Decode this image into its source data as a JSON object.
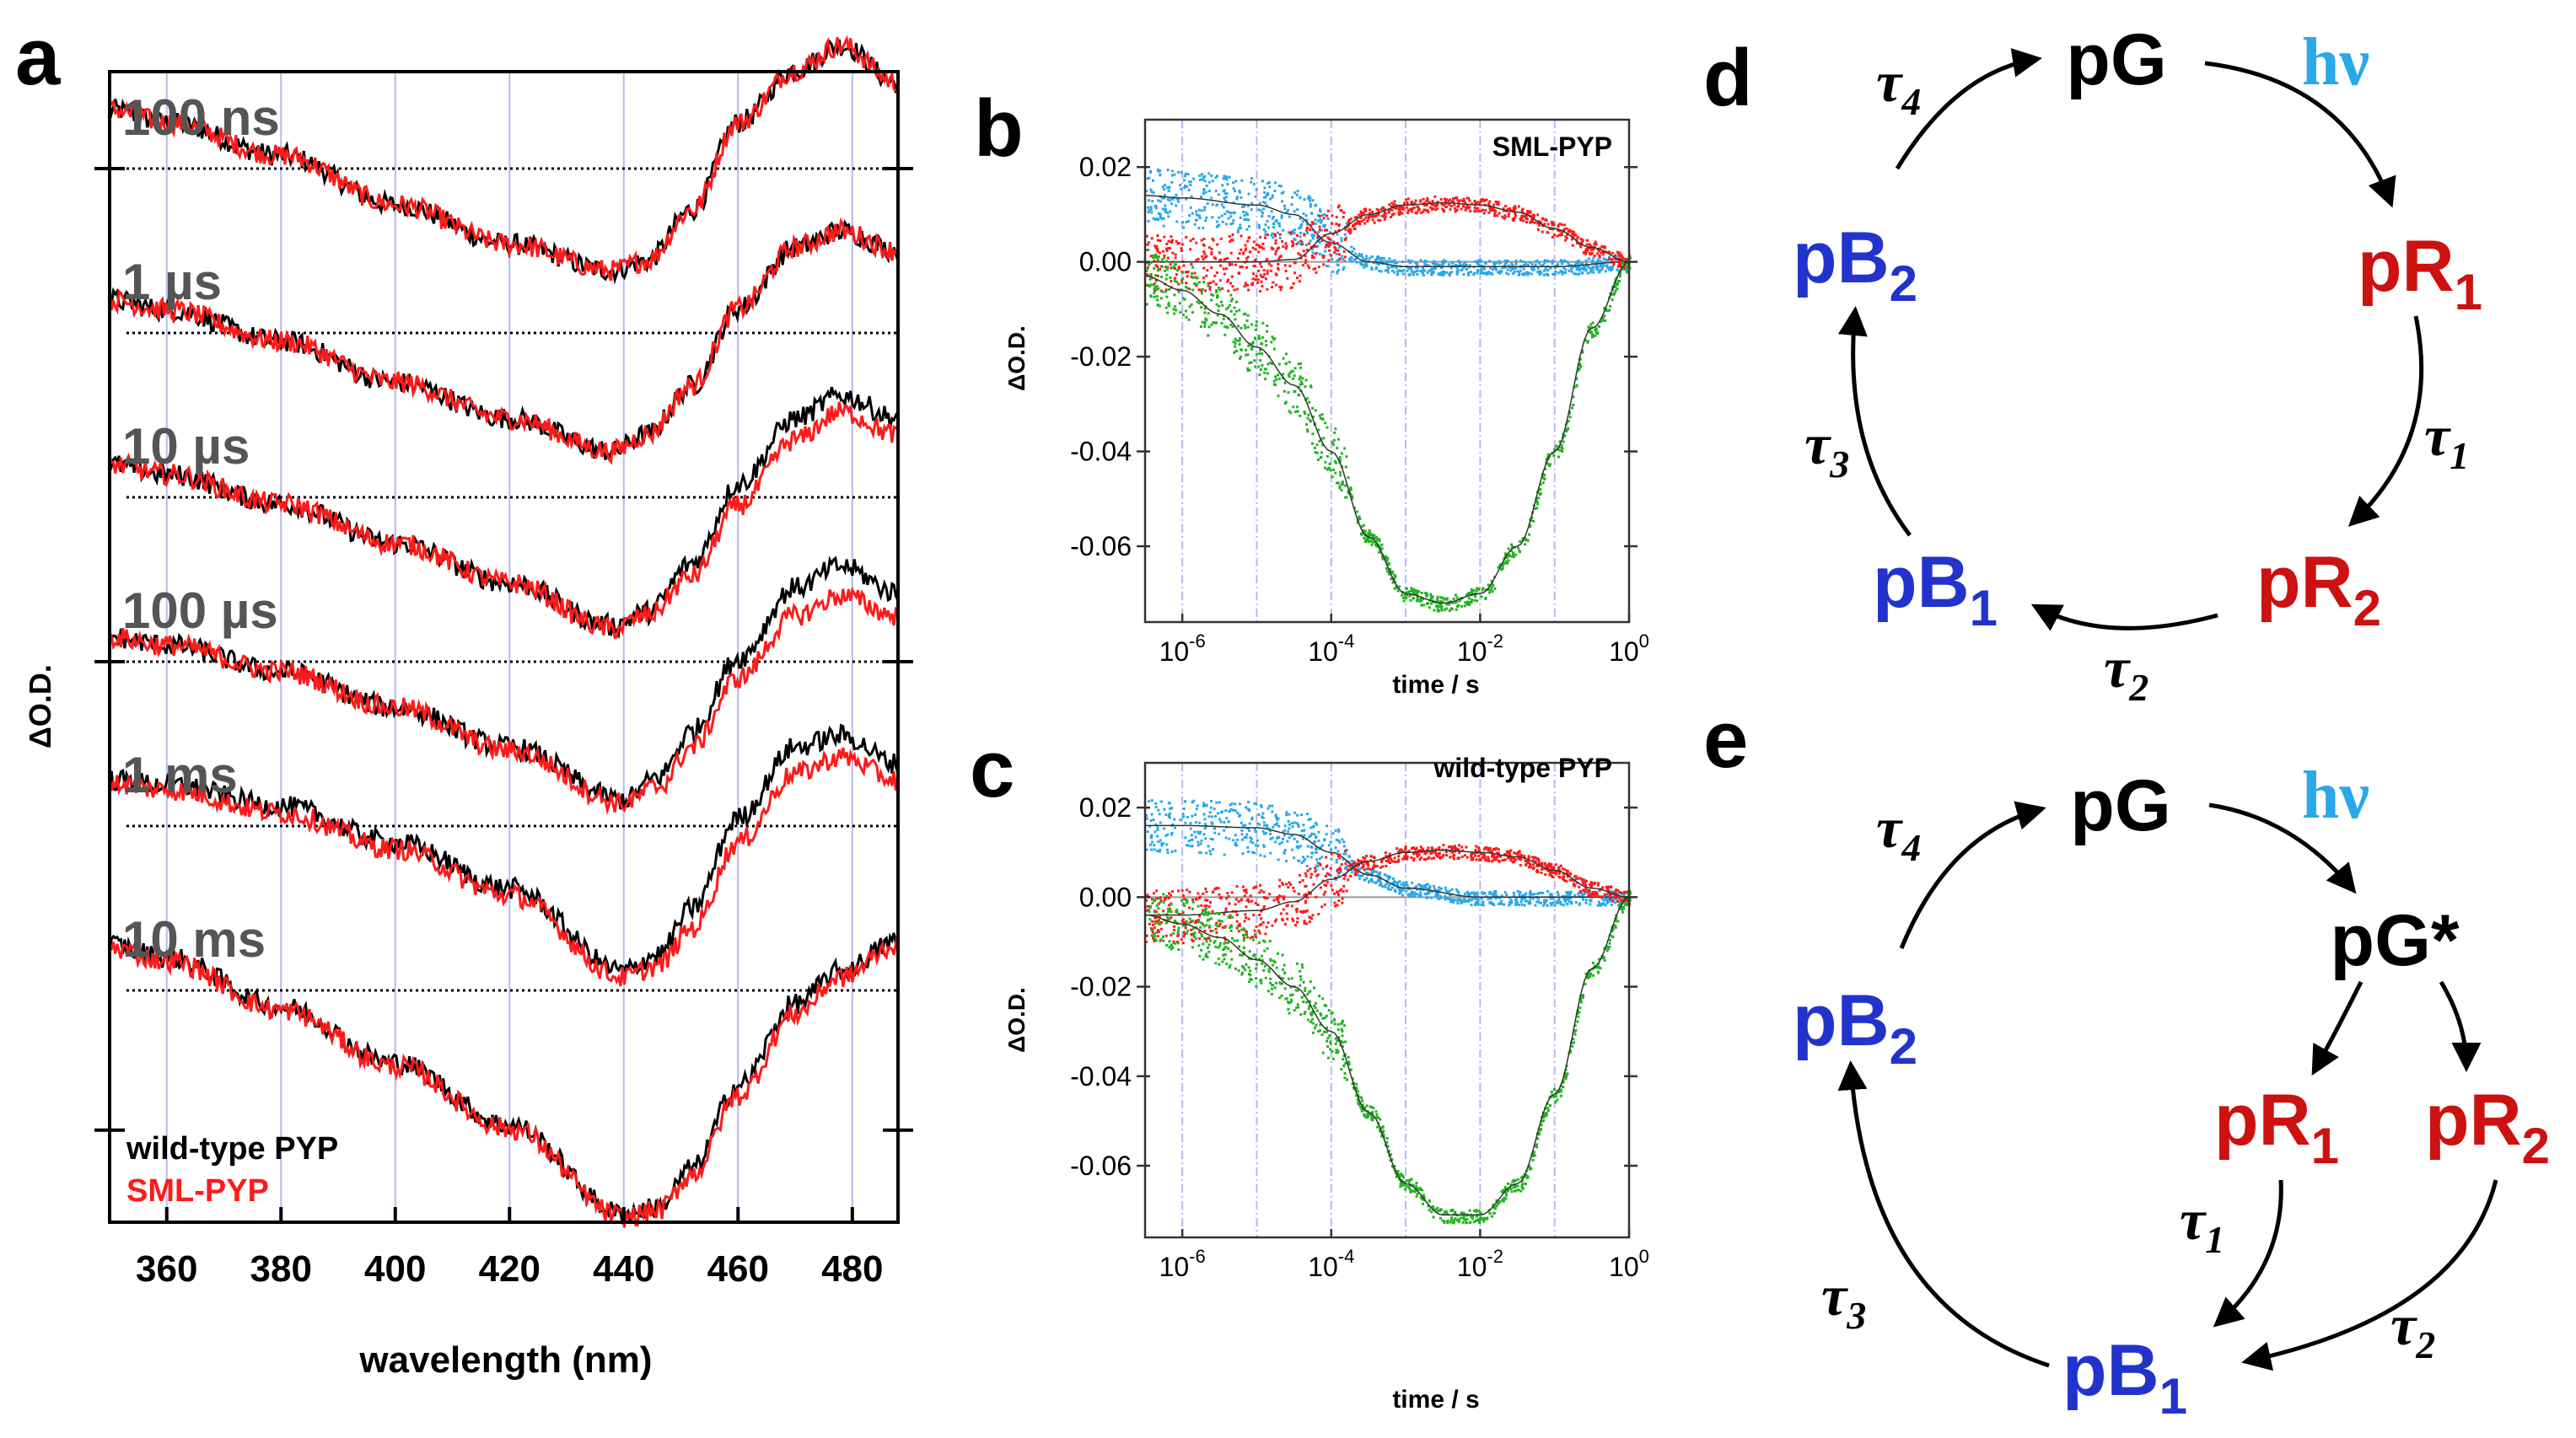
{
  "colors": {
    "black": "#000000",
    "red": "#ff1a1a",
    "blue": "#2233cc",
    "cyan": "#2aa8e8",
    "green": "#22b322",
    "darkred": "#cc1111",
    "gray": "#555555",
    "grid": "#b8b8f0"
  },
  "panels": {
    "a": "a",
    "b": "b",
    "c": "c",
    "d": "d",
    "e": "e"
  },
  "chart_data": [
    {
      "id": "a",
      "type": "line",
      "xlabel": "wavelength (nm)",
      "ylabel": "ΔO.D.",
      "xlim": [
        350,
        488
      ],
      "xticks": [
        "360",
        "380",
        "400",
        "420",
        "440",
        "460",
        "480"
      ],
      "xtick_values": [
        360,
        380,
        400,
        420,
        440,
        460,
        480
      ],
      "legend": [
        "wild-type PYP",
        "SML-PYP"
      ],
      "traces": [
        {
          "label": "100 ns",
          "baseline": 0,
          "wt": [
            [
              350,
              0.36
            ],
            [
              360,
              0.28
            ],
            [
              380,
              0.08
            ],
            [
              400,
              -0.22
            ],
            [
              420,
              -0.46
            ],
            [
              438,
              -0.62
            ],
            [
              444,
              -0.56
            ],
            [
              452,
              -0.25
            ],
            [
              460,
              0.28
            ],
            [
              470,
              0.6
            ],
            [
              478,
              0.75
            ],
            [
              488,
              0.52
            ]
          ],
          "sml": [
            [
              350,
              0.36
            ],
            [
              360,
              0.28
            ],
            [
              380,
              0.08
            ],
            [
              400,
              -0.22
            ],
            [
              420,
              -0.46
            ],
            [
              438,
              -0.62
            ],
            [
              444,
              -0.56
            ],
            [
              452,
              -0.25
            ],
            [
              460,
              0.28
            ],
            [
              470,
              0.6
            ],
            [
              478,
              0.75
            ],
            [
              488,
              0.52
            ]
          ]
        },
        {
          "label": "1 µs",
          "baseline": -1,
          "wt": [
            [
              350,
              -0.8
            ],
            [
              360,
              -0.86
            ],
            [
              380,
              -1.05
            ],
            [
              400,
              -1.3
            ],
            [
              420,
              -1.52
            ],
            [
              438,
              -1.72
            ],
            [
              444,
              -1.62
            ],
            [
              452,
              -1.32
            ],
            [
              460,
              -0.85
            ],
            [
              470,
              -0.48
            ],
            [
              478,
              -0.38
            ],
            [
              488,
              -0.5
            ]
          ],
          "sml": [
            [
              350,
              -0.8
            ],
            [
              360,
              -0.86
            ],
            [
              380,
              -1.05
            ],
            [
              400,
              -1.3
            ],
            [
              420,
              -1.52
            ],
            [
              438,
              -1.72
            ],
            [
              444,
              -1.62
            ],
            [
              452,
              -1.32
            ],
            [
              460,
              -0.85
            ],
            [
              470,
              -0.48
            ],
            [
              478,
              -0.38
            ],
            [
              488,
              -0.5
            ]
          ]
        },
        {
          "label": "10 µs",
          "baseline": -2,
          "wt": [
            [
              350,
              -1.8
            ],
            [
              360,
              -1.86
            ],
            [
              380,
              -2.04
            ],
            [
              400,
              -2.28
            ],
            [
              420,
              -2.52
            ],
            [
              438,
              -2.78
            ],
            [
              444,
              -2.7
            ],
            [
              452,
              -2.4
            ],
            [
              460,
              -1.92
            ],
            [
              470,
              -1.52
            ],
            [
              478,
              -1.38
            ],
            [
              488,
              -1.52
            ]
          ],
          "sml": [
            [
              350,
              -1.8
            ],
            [
              360,
              -1.86
            ],
            [
              380,
              -2.04
            ],
            [
              400,
              -2.28
            ],
            [
              420,
              -2.52
            ],
            [
              438,
              -2.8
            ],
            [
              444,
              -2.72
            ],
            [
              452,
              -2.48
            ],
            [
              460,
              -2.05
            ],
            [
              470,
              -1.65
            ],
            [
              478,
              -1.48
            ],
            [
              488,
              -1.62
            ]
          ]
        },
        {
          "label": "100 µs",
          "baseline": -3,
          "wt": [
            [
              350,
              -2.85
            ],
            [
              360,
              -2.9
            ],
            [
              380,
              -3.06
            ],
            [
              400,
              -3.28
            ],
            [
              420,
              -3.52
            ],
            [
              440,
              -3.84
            ],
            [
              446,
              -3.7
            ],
            [
              452,
              -3.42
            ],
            [
              460,
              -2.98
            ],
            [
              470,
              -2.55
            ],
            [
              478,
              -2.42
            ],
            [
              488,
              -2.58
            ]
          ],
          "sml": [
            [
              350,
              -2.85
            ],
            [
              360,
              -2.9
            ],
            [
              380,
              -3.06
            ],
            [
              400,
              -3.28
            ],
            [
              420,
              -3.54
            ],
            [
              440,
              -3.86
            ],
            [
              446,
              -3.76
            ],
            [
              452,
              -3.52
            ],
            [
              460,
              -3.1
            ],
            [
              470,
              -2.72
            ],
            [
              478,
              -2.6
            ],
            [
              488,
              -2.72
            ]
          ]
        },
        {
          "label": "1 ms",
          "baseline": -4,
          "wt": [
            [
              350,
              -3.72
            ],
            [
              360,
              -3.75
            ],
            [
              380,
              -3.88
            ],
            [
              400,
              -4.1
            ],
            [
              420,
              -4.38
            ],
            [
              440,
              -4.88
            ],
            [
              446,
              -4.78
            ],
            [
              452,
              -4.5
            ],
            [
              460,
              -3.95
            ],
            [
              470,
              -3.52
            ],
            [
              478,
              -3.45
            ],
            [
              488,
              -3.62
            ]
          ],
          "sml": [
            [
              350,
              -3.74
            ],
            [
              360,
              -3.78
            ],
            [
              380,
              -3.92
            ],
            [
              400,
              -4.14
            ],
            [
              420,
              -4.42
            ],
            [
              440,
              -4.92
            ],
            [
              446,
              -4.85
            ],
            [
              452,
              -4.62
            ],
            [
              460,
              -4.1
            ],
            [
              470,
              -3.68
            ],
            [
              478,
              -3.58
            ],
            [
              488,
              -3.72
            ]
          ]
        },
        {
          "label": "10 ms",
          "baseline": -5,
          "wt": [
            [
              350,
              -4.72
            ],
            [
              360,
              -4.8
            ],
            [
              380,
              -5.1
            ],
            [
              400,
              -5.44
            ],
            [
              420,
              -5.82
            ],
            [
              440,
              -6.36
            ],
            [
              446,
              -6.32
            ],
            [
              452,
              -6.08
            ],
            [
              460,
              -5.58
            ],
            [
              470,
              -5.08
            ],
            [
              478,
              -4.88
            ],
            [
              488,
              -4.7
            ]
          ],
          "sml": [
            [
              350,
              -4.74
            ],
            [
              360,
              -4.82
            ],
            [
              380,
              -5.12
            ],
            [
              400,
              -5.46
            ],
            [
              420,
              -5.84
            ],
            [
              440,
              -6.38
            ],
            [
              446,
              -6.34
            ],
            [
              452,
              -6.12
            ],
            [
              460,
              -5.64
            ],
            [
              470,
              -5.14
            ],
            [
              478,
              -4.92
            ],
            [
              488,
              -4.72
            ]
          ]
        }
      ]
    },
    {
      "id": "b",
      "type": "scatter",
      "title": "SML-PYP",
      "xlabel": "time / s",
      "ylabel": "ΔO.D.",
      "xscale": "log",
      "xlim": [
        -6.5,
        0
      ],
      "ylim": [
        -0.076,
        0.03
      ],
      "yticks": [
        "0.02",
        "0.00",
        "-0.02",
        "-0.04",
        "-0.06"
      ],
      "ytick_values": [
        0.02,
        0,
        -0.02,
        -0.04,
        -0.06
      ],
      "xticks_base": [
        "10",
        "10",
        "10",
        "10"
      ],
      "xticks_exp": [
        "-6",
        "-4",
        "-2",
        "0"
      ],
      "xtick_values": [
        -6,
        -4,
        -2,
        0
      ],
      "series": [
        {
          "name": "blue",
          "color": "#2aa8e8",
          "x": [
            -6.5,
            -6,
            -5,
            -4.5,
            -4,
            -3.5,
            -3,
            -2,
            -1,
            0
          ],
          "y": [
            0.014,
            0.0135,
            0.012,
            0.01,
            0.004,
            0,
            -0.001,
            -0.001,
            -0.001,
            0
          ]
        },
        {
          "name": "red",
          "color": "#ff1a1a",
          "x": [
            -6.5,
            -6,
            -5,
            -4.5,
            -4,
            -3.5,
            -3,
            -2.5,
            -2,
            -1.5,
            -1,
            -0.5,
            0
          ],
          "y": [
            0,
            0,
            0,
            0.0005,
            0.006,
            0.01,
            0.012,
            0.0125,
            0.012,
            0.0105,
            0.007,
            0.003,
            0
          ]
        },
        {
          "name": "green",
          "color": "#22b322",
          "x": [
            -6.5,
            -6,
            -5.5,
            -5,
            -4.5,
            -4,
            -3.5,
            -3,
            -2.5,
            -2,
            -1.5,
            -1,
            -0.5,
            0
          ],
          "y": [
            -0.003,
            -0.006,
            -0.011,
            -0.018,
            -0.026,
            -0.04,
            -0.058,
            -0.07,
            -0.072,
            -0.07,
            -0.06,
            -0.04,
            -0.014,
            0
          ]
        }
      ]
    },
    {
      "id": "c",
      "type": "scatter",
      "title": "wild-type PYP",
      "xlabel": "time / s",
      "ylabel": "ΔO.D.",
      "xscale": "log",
      "xlim": [
        -6.5,
        0
      ],
      "ylim": [
        -0.076,
        0.03
      ],
      "yticks": [
        "0.02",
        "0.00",
        "-0.02",
        "-0.04",
        "-0.06"
      ],
      "ytick_values": [
        0.02,
        0,
        -0.02,
        -0.04,
        -0.06
      ],
      "xticks_base": [
        "10",
        "10",
        "10",
        "10"
      ],
      "xticks_exp": [
        "-6",
        "-4",
        "-2",
        "0"
      ],
      "xtick_values": [
        -6,
        -4,
        -2,
        0
      ],
      "series": [
        {
          "name": "blue",
          "color": "#2aa8e8",
          "x": [
            -6.5,
            -6,
            -5,
            -4.5,
            -4,
            -3.5,
            -3,
            -2,
            -1,
            0
          ],
          "y": [
            0.016,
            0.016,
            0.0155,
            0.014,
            0.01,
            0.005,
            0.002,
            0,
            0,
            0
          ]
        },
        {
          "name": "red",
          "color": "#ff1a1a",
          "x": [
            -6.5,
            -6,
            -5,
            -4.5,
            -4,
            -3.5,
            -3,
            -2.5,
            -2,
            -1.5,
            -1,
            -0.5,
            0
          ],
          "y": [
            -0.004,
            -0.004,
            -0.003,
            -0.001,
            0.004,
            0.008,
            0.01,
            0.0105,
            0.01,
            0.009,
            0.006,
            0.002,
            0
          ]
        },
        {
          "name": "green",
          "color": "#22b322",
          "x": [
            -6.5,
            -6,
            -5.5,
            -5,
            -4.5,
            -4,
            -3.5,
            -3,
            -2.5,
            -2,
            -1.5,
            -1,
            -0.5,
            0
          ],
          "y": [
            -0.004,
            -0.006,
            -0.009,
            -0.014,
            -0.02,
            -0.03,
            -0.048,
            -0.064,
            -0.071,
            -0.071,
            -0.064,
            -0.044,
            -0.016,
            0
          ]
        }
      ]
    }
  ],
  "schemes": {
    "d": {
      "pG": "pG",
      "hv": "hν",
      "pR1": "pR",
      "pR1_sub": "1",
      "pR2": "pR",
      "pR2_sub": "2",
      "pB1": "pB",
      "pB1_sub": "1",
      "pB2": "pB",
      "pB2_sub": "2",
      "tau1": "τ",
      "tau1_sub": "1",
      "tau2": "τ",
      "tau2_sub": "2",
      "tau3": "τ",
      "tau3_sub": "3",
      "tau4": "τ",
      "tau4_sub": "4"
    },
    "e": {
      "pG": "pG",
      "hv": "hν",
      "pGs": "pG*",
      "pR1": "pR",
      "pR1_sub": "1",
      "pR2": "pR",
      "pR2_sub": "2",
      "pB1": "pB",
      "pB1_sub": "1",
      "pB2": "pB",
      "pB2_sub": "2",
      "tau1": "τ",
      "tau1_sub": "1",
      "tau2": "τ",
      "tau2_sub": "2",
      "tau3": "τ",
      "tau3_sub": "3",
      "tau4": "τ",
      "tau4_sub": "4"
    }
  }
}
